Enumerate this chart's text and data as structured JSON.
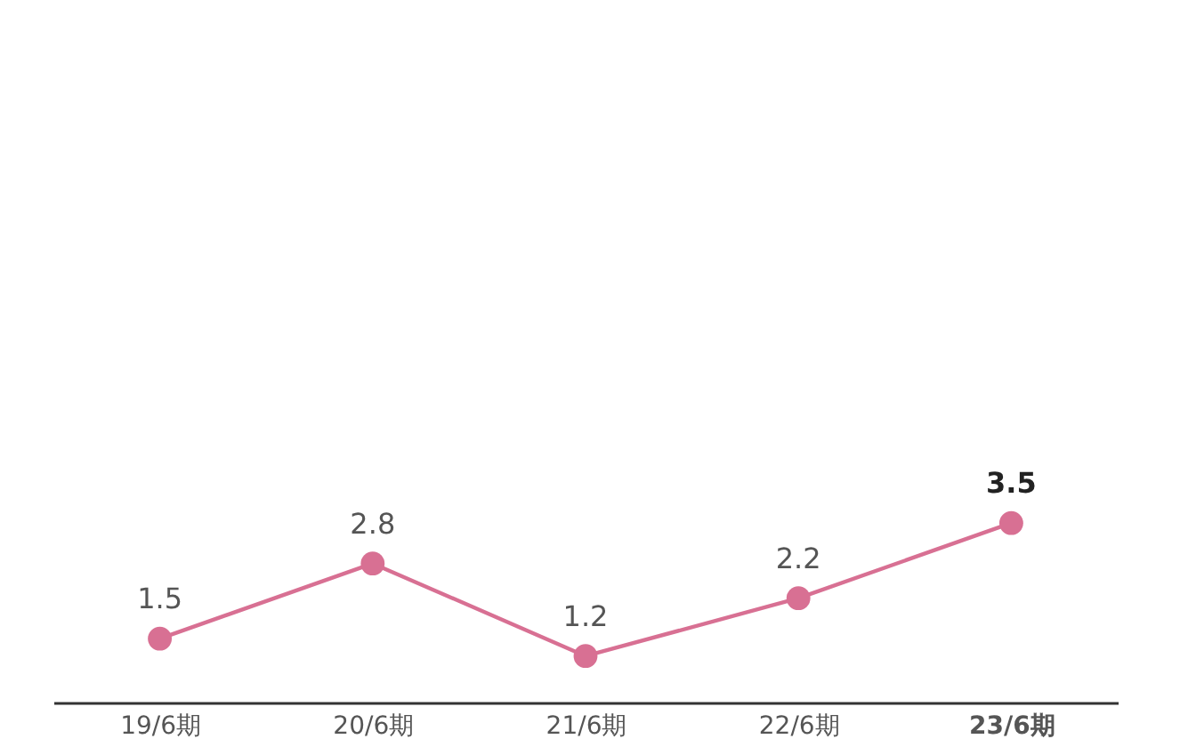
{
  "chart_data": {
    "type": "line",
    "categories": [
      "19/6期",
      "20/6期",
      "21/6期",
      "22/6期",
      "23/6期"
    ],
    "series": [
      {
        "color": "#d87093",
        "values": [
          1.5,
          2.8,
          1.2,
          2.2,
          3.5
        ]
      }
    ],
    "data_labels": true,
    "marker": "circle",
    "line_style": "solid",
    "grid": false
  }
}
